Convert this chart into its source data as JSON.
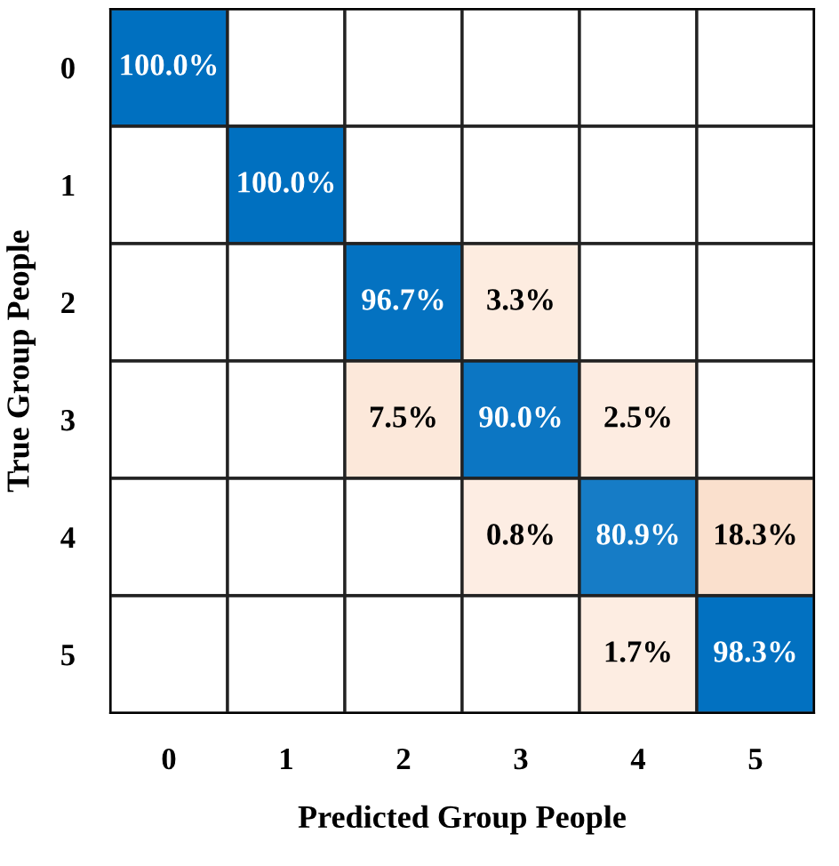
{
  "chart_data": {
    "type": "heatmap",
    "xlabel": "Predicted Group People",
    "ylabel": "True Group People",
    "categories": [
      "0",
      "1",
      "2",
      "3",
      "4",
      "5"
    ],
    "y_categories": [
      "0",
      "1",
      "2",
      "3",
      "4",
      "5"
    ],
    "cells": [
      [
        100.0,
        null,
        null,
        null,
        null,
        null
      ],
      [
        null,
        100.0,
        null,
        null,
        null,
        null
      ],
      [
        null,
        null,
        96.7,
        3.3,
        null,
        null
      ],
      [
        null,
        null,
        7.5,
        90.0,
        2.5,
        null
      ],
      [
        null,
        null,
        null,
        0.8,
        80.9,
        18.3
      ],
      [
        null,
        null,
        null,
        null,
        1.7,
        98.3
      ]
    ],
    "cell_labels": [
      [
        "100.0%",
        null,
        null,
        null,
        null,
        null
      ],
      [
        null,
        "100.0%",
        null,
        null,
        null,
        null
      ],
      [
        null,
        null,
        "96.7%",
        "3.3%",
        null,
        null
      ],
      [
        null,
        null,
        "7.5%",
        "90.0%",
        "2.5%",
        null
      ],
      [
        null,
        null,
        null,
        "0.8%",
        "80.9%",
        "18.3%"
      ],
      [
        null,
        null,
        null,
        null,
        "1.7%",
        "98.3%"
      ]
    ]
  }
}
